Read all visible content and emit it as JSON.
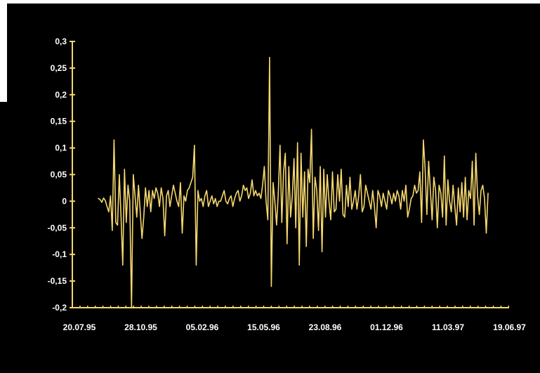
{
  "colors": {
    "background": "#000000",
    "axis": "#f5d76e",
    "series": "#f5d76e",
    "text": "#ffffff"
  },
  "chart_data": {
    "type": "line",
    "title": "",
    "xlabel": "",
    "ylabel": "",
    "ylim": [
      -0.2,
      0.3
    ],
    "yticks": [
      "0,3",
      "0,25",
      "0,2",
      "0,15",
      "0,1",
      "0,05",
      "0",
      "-0,05",
      "-0,1",
      "-0,15",
      "-0,2"
    ],
    "xticks": [
      "20.07.95",
      "28.10.95",
      "05.02.96",
      "15.05.96",
      "23.08.96",
      "01.12.96",
      "11.03.97",
      "19.06.97"
    ],
    "series": [
      {
        "values": [
          0.005,
          0.003,
          -0.002,
          0.006,
          0.001,
          -0.01,
          -0.02,
          0.01,
          -0.055,
          0.115,
          -0.04,
          -0.045,
          0.05,
          -0.03,
          -0.12,
          0.06,
          -0.04,
          0.03,
          0.0,
          -0.2,
          0.05,
          0.01,
          -0.03,
          0.03,
          -0.02,
          -0.07,
          -0.03,
          0.025,
          -0.01,
          0.02,
          -0.02,
          0.02,
          0.005,
          0.025,
          0.015,
          -0.01,
          0.025,
          0.005,
          -0.065,
          0.01,
          0.02,
          -0.01,
          0.01,
          0.03,
          0.015,
          0.0,
          -0.01,
          0.035,
          -0.06,
          0.01,
          0.0,
          0.02,
          0.025,
          0.035,
          0.045,
          0.105,
          -0.12,
          0.02,
          0.0,
          0.005,
          -0.01,
          0.01,
          0.02,
          -0.01,
          0.0,
          0.01,
          -0.005,
          0.005,
          -0.01,
          0.0,
          0.0,
          0.01,
          0.02,
          0.0,
          -0.005,
          0.005,
          0.01,
          -0.01,
          0.005,
          0.015,
          0.02,
          0.0,
          0.01,
          0.03,
          0.02,
          0.025,
          0.005,
          0.015,
          0.04,
          0.01,
          0.02,
          0.01,
          0.015,
          0.005,
          0.03,
          0.065,
          0.0,
          -0.035,
          0.27,
          -0.16,
          0.035,
          0.0,
          -0.045,
          0.015,
          0.105,
          -0.04,
          0.055,
          0.09,
          -0.08,
          0.065,
          -0.03,
          0.01,
          0.08,
          -0.05,
          0.11,
          -0.12,
          0.09,
          -0.03,
          0.055,
          -0.085,
          0.06,
          0.035,
          0.135,
          -0.07,
          0.045,
          0.02,
          -0.055,
          0.065,
          -0.095,
          0.06,
          -0.03,
          0.05,
          0.0,
          -0.035,
          0.055,
          -0.02,
          -0.015,
          0.05,
          0.0,
          0.06,
          -0.025,
          -0.03,
          0.03,
          -0.01,
          0.045,
          -0.015,
          0.0,
          0.02,
          -0.015,
          0.01,
          0.05,
          -0.02,
          -0.01,
          0.03,
          0.015,
          0.0,
          -0.015,
          0.02,
          -0.01,
          -0.05,
          0.02,
          0.01,
          -0.01,
          0.015,
          0.0,
          -0.015,
          0.02,
          0.01,
          -0.005,
          0.015,
          0.0,
          0.02,
          0.01,
          -0.015,
          0.02,
          0.0,
          0.03,
          -0.03,
          -0.015,
          0.005,
          0.01,
          0.03,
          0.015,
          0.02,
          0.055,
          -0.04,
          0.115,
          0.06,
          -0.025,
          0.075,
          0.02,
          -0.035,
          0.045,
          0.02,
          -0.05,
          0.03,
          0.015,
          -0.03,
          0.085,
          -0.045,
          0.04,
          0.0,
          -0.02,
          0.03,
          -0.01,
          -0.045,
          0.025,
          -0.02,
          0.035,
          -0.03,
          0.045,
          -0.035,
          0.02,
          0.005,
          0.075,
          -0.045,
          0.09,
          0.01,
          -0.025,
          0.02,
          0.03,
          0.005,
          -0.06,
          0.015
        ]
      }
    ]
  }
}
